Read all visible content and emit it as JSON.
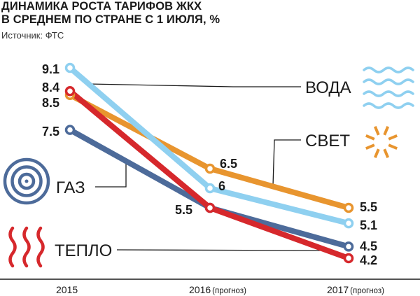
{
  "header": {
    "title_line1": "Динамика роста тарифов ЖКХ",
    "title_line2": "в среднем по стране с 1 июля, %",
    "source": "Источник: ФТС"
  },
  "chart_data": {
    "type": "line",
    "title": "Динамика роста тарифов ЖКХ в среднем по стране с 1 июля, %",
    "xlabel": "",
    "ylabel": "",
    "x": [
      "2015",
      "2016",
      "2017"
    ],
    "x_tick_labels": [
      {
        "main": "2015",
        "note": ""
      },
      {
        "main": "2016",
        "note": "(прогноз)"
      },
      {
        "main": "2017",
        "note": "(прогноз)"
      }
    ],
    "ylim": [
      4,
      9.5
    ],
    "grid": false,
    "legend": "inline labels",
    "series": [
      {
        "name": "ВОДА",
        "key": "water",
        "color": "#8fd0f0",
        "values": [
          9.1,
          6,
          5.1
        ],
        "labels": [
          "9.1",
          "6",
          "5.1"
        ]
      },
      {
        "name": "СВЕТ",
        "key": "light",
        "color": "#e8952f",
        "values": [
          8.4,
          6.5,
          5.5
        ],
        "labels": [
          "8.4",
          "6.5",
          "5.5"
        ]
      },
      {
        "name": "ГАЗ",
        "key": "gas",
        "color": "#4d6b9a",
        "values": [
          7.5,
          5.5,
          4.5
        ],
        "labels": [
          "7.5",
          "5.5",
          "4.5"
        ]
      },
      {
        "name": "ТЕПЛО",
        "key": "heat",
        "color": "#d6282c",
        "values": [
          8.5,
          5.5,
          4.2
        ],
        "labels": [
          "8.5",
          "",
          "4.2"
        ]
      }
    ],
    "icons": [
      {
        "name": "water-waves-icon",
        "color": "#8fd0f0"
      },
      {
        "name": "sun-rays-icon",
        "color": "#e8952f"
      },
      {
        "name": "gas-burner-rings-icon",
        "color": "#4d6b9a"
      },
      {
        "name": "heat-waves-icon",
        "color": "#d6282c"
      }
    ]
  }
}
